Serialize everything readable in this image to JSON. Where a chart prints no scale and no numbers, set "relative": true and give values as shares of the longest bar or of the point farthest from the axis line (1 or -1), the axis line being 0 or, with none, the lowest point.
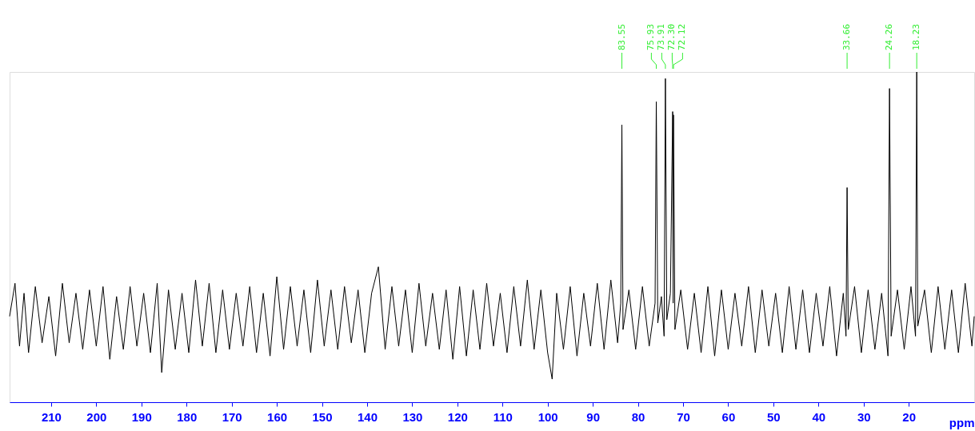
{
  "chart_data": {
    "type": "line",
    "relative": true,
    "color": "#000000",
    "xlabel": "ppm",
    "xlim": [
      219.2,
      5.5
    ],
    "xticks": [
      210,
      200,
      190,
      180,
      170,
      160,
      150,
      140,
      130,
      120,
      110,
      100,
      90,
      80,
      70,
      60,
      50,
      40,
      30,
      20
    ],
    "x": [
      219.2,
      218,
      217,
      216,
      215,
      213.5,
      212,
      210.5,
      209,
      207.5,
      206,
      204.5,
      203,
      201.5,
      200,
      198.5,
      197,
      195.5,
      194,
      192.5,
      191,
      189.5,
      188,
      186.5,
      185.5,
      184,
      182.5,
      181,
      179.5,
      178,
      176.5,
      175,
      173.5,
      172,
      170.5,
      169,
      167.5,
      166,
      164.5,
      163,
      161.5,
      160,
      158.5,
      157,
      155.5,
      154,
      152.5,
      151,
      149.5,
      148,
      146.5,
      145,
      143.5,
      142,
      140.5,
      139,
      137.5,
      136,
      134.5,
      133,
      131.5,
      130,
      128.5,
      127,
      125.5,
      124,
      122.5,
      121,
      119.5,
      118,
      116.5,
      115,
      113.5,
      112,
      110.5,
      109,
      107.5,
      106,
      104.5,
      103,
      101.5,
      100,
      99,
      98,
      96.5,
      95,
      93.5,
      92,
      90.5,
      89,
      87.5,
      86,
      84.5,
      83.8,
      83.55,
      83.3,
      82,
      80.5,
      79,
      77.5,
      76.2,
      75.93,
      75.6,
      74.8,
      74.2,
      73.91,
      73.6,
      72.8,
      72.3,
      72.2,
      72.12,
      71.8,
      70.5,
      69,
      67.5,
      66,
      64.5,
      63,
      61.5,
      60,
      58.5,
      57,
      55.5,
      54,
      52.5,
      51,
      49.5,
      48,
      46.5,
      45,
      43.5,
      42,
      40.5,
      39,
      37.5,
      36,
      34.5,
      33.9,
      33.66,
      33.4,
      32,
      30.5,
      29,
      27.5,
      26,
      24.6,
      24.26,
      23.9,
      22.5,
      21,
      19.5,
      18.5,
      18.23,
      18,
      16.5,
      15,
      13.5,
      12,
      10.5,
      9,
      7.5,
      6,
      5.5
    ],
    "values": [
      0.26,
      0.36,
      0.17,
      0.33,
      0.15,
      0.35,
      0.18,
      0.32,
      0.14,
      0.36,
      0.18,
      0.33,
      0.16,
      0.34,
      0.17,
      0.35,
      0.13,
      0.32,
      0.16,
      0.35,
      0.17,
      0.33,
      0.15,
      0.36,
      0.09,
      0.34,
      0.16,
      0.33,
      0.15,
      0.37,
      0.17,
      0.36,
      0.15,
      0.34,
      0.16,
      0.33,
      0.17,
      0.35,
      0.15,
      0.33,
      0.14,
      0.38,
      0.16,
      0.35,
      0.17,
      0.34,
      0.15,
      0.37,
      0.17,
      0.34,
      0.16,
      0.35,
      0.18,
      0.34,
      0.15,
      0.33,
      0.41,
      0.16,
      0.35,
      0.17,
      0.34,
      0.15,
      0.36,
      0.17,
      0.33,
      0.16,
      0.34,
      0.13,
      0.35,
      0.14,
      0.34,
      0.16,
      0.36,
      0.17,
      0.33,
      0.15,
      0.35,
      0.17,
      0.37,
      0.16,
      0.34,
      0.15,
      0.07,
      0.33,
      0.16,
      0.35,
      0.14,
      0.33,
      0.17,
      0.36,
      0.16,
      0.37,
      0.18,
      0.3,
      0.84,
      0.22,
      0.34,
      0.16,
      0.35,
      0.17,
      0.3,
      0.91,
      0.24,
      0.32,
      0.2,
      0.98,
      0.25,
      0.33,
      0.88,
      0.3,
      0.87,
      0.22,
      0.34,
      0.16,
      0.33,
      0.15,
      0.35,
      0.14,
      0.34,
      0.16,
      0.33,
      0.17,
      0.35,
      0.15,
      0.34,
      0.17,
      0.33,
      0.15,
      0.35,
      0.16,
      0.34,
      0.15,
      0.33,
      0.17,
      0.35,
      0.14,
      0.33,
      0.2,
      0.65,
      0.22,
      0.35,
      0.15,
      0.34,
      0.16,
      0.33,
      0.14,
      0.95,
      0.2,
      0.34,
      0.16,
      0.35,
      0.2,
      1.0,
      0.23,
      0.34,
      0.15,
      0.35,
      0.16,
      0.34,
      0.15,
      0.36,
      0.17,
      0.26
    ],
    "annotations": [
      {
        "text": "83.55",
        "x": 83.55
      },
      {
        "text": "75.93",
        "x": 75.93
      },
      {
        "text": "73.91",
        "x": 73.91
      },
      {
        "text": "72.30",
        "x": 72.3
      },
      {
        "text": "72.12",
        "x": 72.12
      },
      {
        "text": "33.66",
        "x": 33.66
      },
      {
        "text": "24.26",
        "x": 24.26
      },
      {
        "text": "18.23",
        "x": 18.23
      }
    ]
  }
}
